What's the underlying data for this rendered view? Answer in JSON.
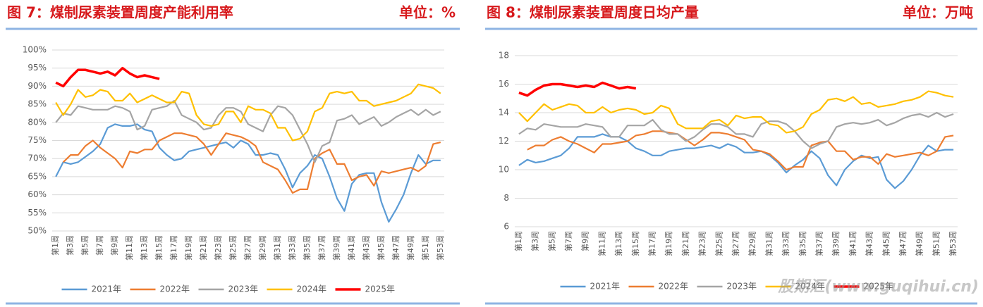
{
  "chart_data": [
    {
      "type": "line",
      "title": "图 7：煤制尿素装置周度产能利用率",
      "subtitle": "单位：%",
      "categories": [
        "第1周",
        null,
        "第3周",
        null,
        "第5周",
        null,
        "第7周",
        null,
        "第9周",
        null,
        "第11周",
        null,
        "第13周",
        null,
        "第15周",
        null,
        "第17周",
        null,
        "第19周",
        null,
        "第21周",
        null,
        "第23周",
        null,
        "第25周",
        null,
        "第27周",
        null,
        "第29周",
        null,
        "第31周",
        null,
        "第33周",
        null,
        "第35周",
        null,
        "第37周",
        null,
        "第39周",
        null,
        "第41周",
        null,
        "第43周",
        null,
        "第45周",
        null,
        "第47周",
        null,
        "第49周",
        null,
        "第51周",
        null,
        "第53周"
      ],
      "ylim": [
        50,
        100
      ],
      "yticks": [
        {
          "value": 50,
          "label": "50%"
        },
        {
          "value": 55,
          "label": "55%"
        },
        {
          "value": 60,
          "label": "60%"
        },
        {
          "value": 65,
          "label": "65%"
        },
        {
          "value": 70,
          "label": "70%"
        },
        {
          "value": 75,
          "label": "75%"
        },
        {
          "value": 80,
          "label": "80%"
        },
        {
          "value": 85,
          "label": "85%"
        },
        {
          "value": 90,
          "label": "90%"
        },
        {
          "value": 95,
          "label": "95%"
        },
        {
          "value": 100,
          "label": "100%"
        }
      ],
      "grid": true,
      "legend": "bottom",
      "series": [
        {
          "name": "2021年",
          "color": "#5b9bd5",
          "values": [
            65,
            69,
            68.5,
            69,
            70.5,
            72,
            74,
            78.5,
            79.5,
            79,
            79,
            79.5,
            78,
            77.5,
            73,
            71,
            69.5,
            70,
            72,
            72.5,
            73,
            73.5,
            74,
            74.5,
            73,
            75,
            74,
            71,
            71,
            71.5,
            71,
            67,
            62,
            66,
            68,
            71,
            70,
            65,
            59,
            55.5,
            63,
            65.5,
            66,
            66,
            58,
            52.5,
            56,
            60,
            66,
            71,
            68.5,
            69.5,
            69.5
          ]
        },
        {
          "name": "2022年",
          "color": "#ed7d31",
          "values": [
            null,
            69,
            71,
            71,
            73.5,
            75,
            73,
            71.5,
            70,
            67.5,
            72,
            71.5,
            72.5,
            72.5,
            75,
            76,
            77,
            77,
            76.5,
            76,
            74,
            71,
            74,
            77,
            76.5,
            76,
            75,
            73.5,
            69,
            68,
            67,
            64,
            60.5,
            61.5,
            61.5,
            70,
            71.5,
            72.5,
            68.5,
            68.5,
            64,
            65,
            65.5,
            62.5,
            66.5,
            66,
            66.5,
            67,
            67.5,
            66.5,
            68,
            74,
            74.5
          ]
        },
        {
          "name": "2023年",
          "color": "#a5a5a5",
          "values": [
            80,
            82.5,
            82,
            84.5,
            84,
            83.5,
            83.5,
            83.5,
            84.5,
            84,
            83,
            78,
            79,
            83.5,
            84,
            84.5,
            86,
            82,
            81,
            80,
            78,
            78.5,
            82,
            84,
            84,
            83,
            79.5,
            78.5,
            77.5,
            82,
            84.5,
            84,
            82,
            78,
            74,
            69,
            73.5,
            74.5,
            80.5,
            81,
            82,
            79.5,
            80.5,
            81.5,
            79,
            80,
            81.5,
            82.5,
            83.5,
            82,
            83.5,
            82,
            83
          ]
        },
        {
          "name": "2024年",
          "color": "#ffc000",
          "values": [
            85.5,
            82,
            85,
            89,
            87,
            87.5,
            89,
            88.5,
            86,
            86,
            88,
            85.5,
            86.5,
            87.5,
            86.5,
            85.5,
            85.5,
            88.5,
            88,
            82,
            79.5,
            79,
            79.5,
            83,
            83,
            80,
            84.5,
            83.5,
            83.5,
            82.5,
            78.5,
            78.5,
            75,
            75.5,
            77.5,
            83,
            84,
            88,
            88.5,
            88,
            88.5,
            86,
            86,
            84.5,
            85,
            85.5,
            86,
            87,
            88,
            90.5,
            90,
            89.5,
            88
          ]
        },
        {
          "name": "2025年",
          "color": "#ff0000",
          "values": [
            91,
            90,
            92.5,
            94.5,
            94.5,
            94,
            93.5,
            94,
            93,
            95,
            93.5,
            92.5,
            93,
            92.5,
            92,
            null,
            null,
            null,
            null,
            null,
            null,
            null,
            null,
            null,
            null,
            null,
            null,
            null,
            null,
            null,
            null,
            null,
            null,
            null,
            null,
            null,
            null,
            null,
            null,
            null,
            null,
            null,
            null,
            null,
            null,
            null,
            null,
            null,
            null,
            null,
            null,
            null,
            null
          ]
        }
      ]
    },
    {
      "type": "line",
      "title": "图 8：煤制尿素装置周度日均产量",
      "subtitle": "单位：万吨",
      "categories": [
        "第1周",
        null,
        "第3周",
        null,
        "第5周",
        null,
        "第7周",
        null,
        "第9周",
        null,
        "第11周",
        null,
        "第13周",
        null,
        "第15周",
        null,
        "第17周",
        null,
        "第19周",
        null,
        "第21周",
        null,
        "第23周",
        null,
        "第25周",
        null,
        "第27周",
        null,
        "第29周",
        null,
        "第31周",
        null,
        "第33周",
        null,
        "第35周",
        null,
        "第37周",
        null,
        "第39周",
        null,
        "第41周",
        null,
        "第43周",
        null,
        "第45周",
        null,
        "第47周",
        null,
        "第49周",
        null,
        "第51周",
        null,
        "第53周"
      ],
      "ylim": [
        6,
        18
      ],
      "yticks": [
        6,
        8,
        10,
        12,
        14,
        16,
        18
      ],
      "grid": true,
      "legend": "bottom",
      "series": [
        {
          "name": "2021年",
          "color": "#5b9bd5",
          "values": [
            10.3,
            10.7,
            10.5,
            10.6,
            10.8,
            11.0,
            11.5,
            12.3,
            12.3,
            12.3,
            12.5,
            12.3,
            12.3,
            12.0,
            11.5,
            11.3,
            11.0,
            11.0,
            11.3,
            11.4,
            11.5,
            11.5,
            11.6,
            11.7,
            11.5,
            11.8,
            11.6,
            11.2,
            11.2,
            11.3,
            11.0,
            10.5,
            9.8,
            10.3,
            10.7,
            11.3,
            10.8,
            9.6,
            8.9,
            10.0,
            10.6,
            11.0,
            10.8,
            10.9,
            9.3,
            8.7,
            9.2,
            10.0,
            11.0,
            11.7,
            11.3,
            11.4,
            11.4
          ]
        },
        {
          "name": "2022年",
          "color": "#ed7d31",
          "values": [
            null,
            11.4,
            11.7,
            11.7,
            12.1,
            12.3,
            12.0,
            11.8,
            11.5,
            11.2,
            11.8,
            11.8,
            11.9,
            12.0,
            12.4,
            12.5,
            12.7,
            12.7,
            12.6,
            12.5,
            12.1,
            11.7,
            12.1,
            12.6,
            12.6,
            12.5,
            12.3,
            12.1,
            11.4,
            11.3,
            11.1,
            10.6,
            10.0,
            10.2,
            10.2,
            11.7,
            11.9,
            12.0,
            11.3,
            11.3,
            10.7,
            10.9,
            10.9,
            10.4,
            11.1,
            10.9,
            11.0,
            11.1,
            11.2,
            11.0,
            11.3,
            12.3,
            12.4
          ]
        },
        {
          "name": "2023年",
          "color": "#a5a5a5",
          "values": [
            12.5,
            12.9,
            12.8,
            13.2,
            13.1,
            13.0,
            13.0,
            13.0,
            13.2,
            13.1,
            13.0,
            12.3,
            12.3,
            13.1,
            13.1,
            13.1,
            13.5,
            12.8,
            12.5,
            12.5,
            12.0,
            12.3,
            12.8,
            13.2,
            13.2,
            13.0,
            12.5,
            12.5,
            12.3,
            13.2,
            13.4,
            13.4,
            13.2,
            12.7,
            12.0,
            11.5,
            11.8,
            12.0,
            13.0,
            13.2,
            13.3,
            13.2,
            13.3,
            13.5,
            13.1,
            13.3,
            13.6,
            13.8,
            13.9,
            13.7,
            14.0,
            13.7,
            13.9
          ]
        },
        {
          "name": "2024年",
          "color": "#ffc000",
          "values": [
            14.0,
            13.4,
            14.0,
            14.6,
            14.2,
            14.4,
            14.6,
            14.5,
            14.0,
            14.0,
            14.4,
            14.0,
            14.2,
            14.3,
            14.2,
            13.9,
            14.0,
            14.5,
            14.3,
            13.2,
            12.9,
            12.9,
            12.9,
            13.4,
            13.5,
            13.1,
            13.8,
            13.6,
            13.7,
            13.7,
            13.2,
            13.1,
            12.6,
            12.7,
            13.0,
            13.9,
            14.2,
            14.9,
            15.0,
            14.8,
            15.1,
            14.6,
            14.7,
            14.4,
            14.5,
            14.6,
            14.8,
            14.9,
            15.1,
            15.5,
            15.4,
            15.2,
            15.1
          ]
        },
        {
          "name": "2025年",
          "color": "#ff0000",
          "values": [
            15.4,
            15.2,
            15.6,
            15.9,
            16.0,
            16.0,
            15.9,
            15.8,
            15.9,
            15.8,
            16.1,
            15.9,
            15.7,
            15.8,
            15.7,
            null,
            null,
            null,
            null,
            null,
            null,
            null,
            null,
            null,
            null,
            null,
            null,
            null,
            null,
            null,
            null,
            null,
            null,
            null,
            null,
            null,
            null,
            null,
            null,
            null,
            null,
            null,
            null,
            null,
            null,
            null,
            null,
            null,
            null,
            null,
            null,
            null,
            null
          ]
        }
      ]
    }
  ],
  "watermark": "股期汇(www.guqihui.cn)"
}
